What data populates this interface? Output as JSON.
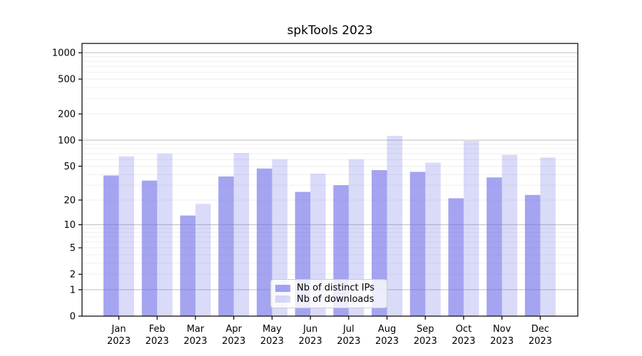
{
  "chart_data": {
    "type": "bar",
    "title": "spkTools 2023",
    "categories": [
      {
        "month": "Jan",
        "year": "2023"
      },
      {
        "month": "Feb",
        "year": "2023"
      },
      {
        "month": "Mar",
        "year": "2023"
      },
      {
        "month": "Apr",
        "year": "2023"
      },
      {
        "month": "May",
        "year": "2023"
      },
      {
        "month": "Jun",
        "year": "2023"
      },
      {
        "month": "Jul",
        "year": "2023"
      },
      {
        "month": "Aug",
        "year": "2023"
      },
      {
        "month": "Sep",
        "year": "2023"
      },
      {
        "month": "Oct",
        "year": "2023"
      },
      {
        "month": "Nov",
        "year": "2023"
      },
      {
        "month": "Dec",
        "year": "2023"
      }
    ],
    "series": [
      {
        "name": "Nb of distinct IPs",
        "color": "rgba(108,108,232,0.62)",
        "values": [
          39,
          34,
          13,
          38,
          47,
          25,
          30,
          45,
          43,
          21,
          37,
          23
        ]
      },
      {
        "name": "Nb of downloads",
        "color": "rgba(108,108,232,0.25)",
        "values": [
          65,
          70,
          18,
          71,
          60,
          41,
          60,
          112,
          55,
          98,
          68,
          63
        ]
      }
    ],
    "xlabel": "",
    "ylabel": "",
    "y_scale": "log1p",
    "y_ticks": [
      0,
      1,
      2,
      5,
      10,
      20,
      50,
      100,
      200,
      500,
      1000
    ],
    "ylim": [
      0,
      1276
    ],
    "grid": {
      "enabled": true,
      "major_color": "#bdbdbd",
      "minor_color": "#efefef"
    },
    "frame_color": "#000000",
    "text_color": "#000000",
    "legend_position": "lower-center"
  }
}
